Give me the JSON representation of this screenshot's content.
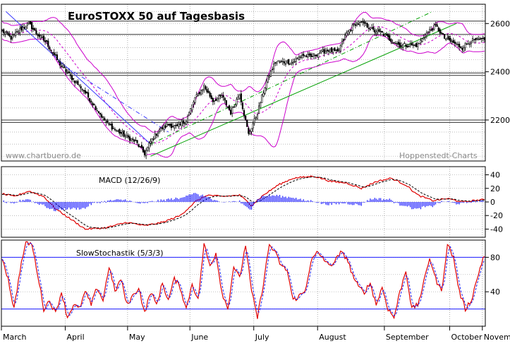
{
  "chart_data": [
    {
      "type": "candlestick",
      "title": "EuroSTOXX 50 auf Tagesbasis",
      "watermark_left": "www.chartbuero.de",
      "watermark_right": "Hoppenstedt-Charts",
      "ylim": [
        2030,
        2680
      ],
      "yticks": [
        2200,
        2400,
        2600
      ],
      "grid": true,
      "x_months": [
        "March",
        "April",
        "May",
        "June",
        "July",
        "August",
        "September",
        "October",
        "Novem"
      ],
      "close_anchors": [
        [
          0,
          2570
        ],
        [
          6,
          2540
        ],
        [
          12,
          2575
        ],
        [
          18,
          2600
        ],
        [
          23,
          2560
        ],
        [
          30,
          2520
        ],
        [
          38,
          2440
        ],
        [
          46,
          2380
        ],
        [
          54,
          2330
        ],
        [
          62,
          2260
        ],
        [
          70,
          2190
        ],
        [
          76,
          2160
        ],
        [
          84,
          2130
        ],
        [
          90,
          2110
        ],
        [
          96,
          2060
        ],
        [
          100,
          2110
        ],
        [
          106,
          2160
        ],
        [
          112,
          2180
        ],
        [
          118,
          2170
        ],
        [
          124,
          2200
        ],
        [
          130,
          2290
        ],
        [
          136,
          2340
        ],
        [
          142,
          2280
        ],
        [
          148,
          2300
        ],
        [
          154,
          2230
        ],
        [
          160,
          2310
        ],
        [
          166,
          2140
        ],
        [
          172,
          2230
        ],
        [
          178,
          2360
        ],
        [
          184,
          2440
        ],
        [
          190,
          2440
        ],
        [
          196,
          2440
        ],
        [
          202,
          2470
        ],
        [
          208,
          2460
        ],
        [
          214,
          2480
        ],
        [
          220,
          2490
        ],
        [
          226,
          2480
        ],
        [
          232,
          2560
        ],
        [
          238,
          2600
        ],
        [
          244,
          2600
        ],
        [
          250,
          2570
        ],
        [
          256,
          2560
        ],
        [
          262,
          2530
        ],
        [
          268,
          2510
        ],
        [
          274,
          2510
        ],
        [
          280,
          2510
        ],
        [
          286,
          2560
        ],
        [
          292,
          2590
        ],
        [
          298,
          2540
        ],
        [
          304,
          2520
        ],
        [
          310,
          2500
        ],
        [
          316,
          2530
        ],
        [
          322,
          2530
        ]
      ],
      "trend_lines": [
        {
          "name": "downtrend",
          "color": "#3a3aff",
          "from": [
            2.5,
            2650
          ],
          "to": [
            100,
            2100
          ]
        },
        {
          "name": "down-channel-dash",
          "color": "#3a3aff",
          "from": [
            38,
            2440
          ],
          "to": [
            112,
            2150
          ]
        },
        {
          "name": "uptrend",
          "color": "#00a000",
          "from": [
            100,
            2050
          ],
          "to": [
            306,
            2600
          ]
        },
        {
          "name": "up-channel-dash",
          "color": "#00a000",
          "from": [
            100,
            2100
          ],
          "to": [
            290,
            2650
          ]
        }
      ],
      "horizontal_lines": [
        2610,
        2555,
        2395,
        2385,
        2200,
        2190
      ]
    },
    {
      "type": "line",
      "title": "MACD (12/26/9)",
      "ylim": [
        -52,
        52
      ],
      "yticks": [
        -40,
        -20,
        0,
        20,
        40
      ],
      "macd_anchors": [
        [
          0,
          12
        ],
        [
          8,
          8
        ],
        [
          18,
          16
        ],
        [
          28,
          8
        ],
        [
          36,
          -10
        ],
        [
          46,
          -25
        ],
        [
          56,
          -40
        ],
        [
          70,
          -38
        ],
        [
          84,
          -30
        ],
        [
          96,
          -35
        ],
        [
          108,
          -30
        ],
        [
          120,
          -20
        ],
        [
          130,
          0
        ],
        [
          138,
          10
        ],
        [
          148,
          8
        ],
        [
          160,
          10
        ],
        [
          168,
          -5
        ],
        [
          176,
          10
        ],
        [
          186,
          25
        ],
        [
          196,
          35
        ],
        [
          210,
          38
        ],
        [
          222,
          30
        ],
        [
          232,
          28
        ],
        [
          242,
          20
        ],
        [
          252,
          30
        ],
        [
          262,
          35
        ],
        [
          272,
          25
        ],
        [
          280,
          10
        ],
        [
          290,
          2
        ],
        [
          300,
          5
        ],
        [
          310,
          0
        ],
        [
          322,
          3
        ]
      ]
    },
    {
      "type": "line",
      "title": "SlowStochastik (5/3/3)",
      "ylim": [
        0,
        100
      ],
      "yticks": [
        40,
        80
      ],
      "reference_lines": [
        80,
        20
      ],
      "stoch_anchors": [
        [
          0,
          80
        ],
        [
          4,
          55
        ],
        [
          8,
          20
        ],
        [
          12,
          65
        ],
        [
          16,
          98
        ],
        [
          20,
          95
        ],
        [
          24,
          60
        ],
        [
          28,
          20
        ],
        [
          32,
          30
        ],
        [
          36,
          15
        ],
        [
          40,
          40
        ],
        [
          44,
          10
        ],
        [
          48,
          25
        ],
        [
          52,
          20
        ],
        [
          56,
          40
        ],
        [
          60,
          25
        ],
        [
          64,
          45
        ],
        [
          68,
          30
        ],
        [
          72,
          70
        ],
        [
          76,
          40
        ],
        [
          80,
          55
        ],
        [
          84,
          25
        ],
        [
          88,
          35
        ],
        [
          92,
          45
        ],
        [
          96,
          15
        ],
        [
          100,
          40
        ],
        [
          104,
          25
        ],
        [
          108,
          50
        ],
        [
          112,
          30
        ],
        [
          116,
          55
        ],
        [
          120,
          45
        ],
        [
          124,
          20
        ],
        [
          128,
          50
        ],
        [
          132,
          30
        ],
        [
          136,
          95
        ],
        [
          140,
          70
        ],
        [
          144,
          85
        ],
        [
          148,
          40
        ],
        [
          152,
          20
        ],
        [
          156,
          70
        ],
        [
          160,
          55
        ],
        [
          164,
          95
        ],
        [
          168,
          40
        ],
        [
          172,
          10
        ],
        [
          176,
          50
        ],
        [
          180,
          95
        ],
        [
          184,
          85
        ],
        [
          188,
          70
        ],
        [
          192,
          65
        ],
        [
          196,
          30
        ],
        [
          200,
          35
        ],
        [
          204,
          40
        ],
        [
          208,
          75
        ],
        [
          212,
          85
        ],
        [
          216,
          80
        ],
        [
          220,
          70
        ],
        [
          224,
          75
        ],
        [
          228,
          85
        ],
        [
          232,
          80
        ],
        [
          236,
          60
        ],
        [
          240,
          45
        ],
        [
          244,
          40
        ],
        [
          248,
          50
        ],
        [
          252,
          25
        ],
        [
          256,
          45
        ],
        [
          260,
          20
        ],
        [
          264,
          10
        ],
        [
          268,
          40
        ],
        [
          272,
          65
        ],
        [
          276,
          20
        ],
        [
          280,
          25
        ],
        [
          284,
          50
        ],
        [
          288,
          80
        ],
        [
          292,
          55
        ],
        [
          296,
          40
        ],
        [
          300,
          95
        ],
        [
          304,
          80
        ],
        [
          308,
          40
        ],
        [
          312,
          20
        ],
        [
          316,
          30
        ],
        [
          320,
          55
        ],
        [
          324,
          80
        ]
      ]
    }
  ]
}
